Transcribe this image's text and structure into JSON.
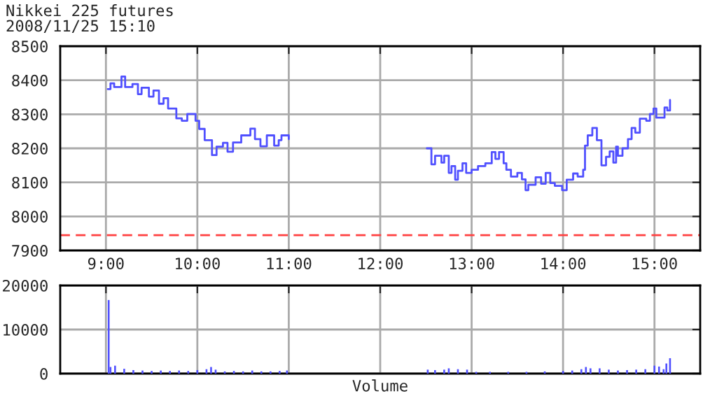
{
  "chart_data": [
    {
      "type": "step",
      "title": "Nikkei 225 futures",
      "subtitle": "2008/11/25 15:10",
      "series": [
        {
          "color": "#5050ff",
          "x": [
            9.02,
            9.05,
            9.09,
            9.17,
            9.21,
            9.29,
            9.35,
            9.39,
            9.47,
            9.52,
            9.58,
            9.63,
            9.68,
            9.77,
            9.83,
            9.89,
            9.98,
            10.02,
            10.08,
            10.16,
            10.21,
            10.28,
            10.33,
            10.39,
            10.48,
            10.58,
            10.63,
            10.69,
            10.76,
            10.84,
            10.89,
            10.92,
            10.96,
            11.0
          ],
          "values": [
            8374,
            8391,
            8380,
            8411,
            8380,
            8389,
            8359,
            8378,
            8352,
            8370,
            8331,
            8347,
            8317,
            8288,
            8281,
            8301,
            8281,
            8257,
            8224,
            8180,
            8205,
            8216,
            8190,
            8217,
            8238,
            8258,
            8227,
            8206,
            8238,
            8208,
            8224,
            8238,
            8238,
            8227
          ]
        },
        {
          "color": "#5050ff",
          "x": [
            12.51,
            12.56,
            12.6,
            12.67,
            12.7,
            12.75,
            12.78,
            12.82,
            12.85,
            12.9,
            12.94,
            13.0,
            13.07,
            13.15,
            13.22,
            13.26,
            13.3,
            13.35,
            13.38,
            13.43,
            13.5,
            13.55,
            13.59,
            13.62,
            13.7,
            13.76,
            13.81,
            13.86,
            13.91,
            13.99,
            14.04,
            14.11,
            14.16,
            14.22,
            14.24,
            14.27,
            14.32,
            14.37,
            14.42,
            14.47,
            14.51,
            14.55,
            14.58,
            14.6,
            14.65,
            14.71,
            14.75,
            14.79,
            14.84,
            14.91,
            14.95,
            14.99,
            15.02,
            15.09,
            15.11,
            15.14,
            15.17
          ],
          "values": [
            8200,
            8153,
            8178,
            8158,
            8178,
            8128,
            8148,
            8108,
            8134,
            8156,
            8128,
            8137,
            8148,
            8156,
            8189,
            8169,
            8189,
            8156,
            8137,
            8117,
            8128,
            8109,
            8077,
            8093,
            8115,
            8096,
            8128,
            8098,
            8090,
            8077,
            8108,
            8126,
            8117,
            8137,
            8208,
            8238,
            8260,
            8224,
            8150,
            8175,
            8191,
            8158,
            8205,
            8178,
            8200,
            8227,
            8260,
            8246,
            8287,
            8281,
            8301,
            8317,
            8290,
            8290,
            8320,
            8311,
            8342
          ]
        }
      ],
      "xlim": [
        8.5,
        15.5
      ],
      "xticks": [
        {
          "value": 9,
          "label": "9:00"
        },
        {
          "value": 10,
          "label": "10:00"
        },
        {
          "value": 11,
          "label": "11:00"
        },
        {
          "value": 12,
          "label": "12:00"
        },
        {
          "value": 13,
          "label": "13:00"
        },
        {
          "value": 14,
          "label": "14:00"
        },
        {
          "value": 15,
          "label": "15:00"
        }
      ],
      "ylim": [
        7900,
        8500
      ],
      "yticks": [
        7900,
        8000,
        8100,
        8200,
        8300,
        8400,
        8500
      ],
      "grid": true,
      "ref_lines": [
        {
          "axis": "y",
          "value": 7945,
          "color": "#ff4040",
          "line_style": "dashed"
        }
      ]
    },
    {
      "type": "bar",
      "xlabel": "Volume",
      "x": [
        9.03,
        9.05,
        9.1,
        9.2,
        9.3,
        9.4,
        9.5,
        9.6,
        9.7,
        9.8,
        9.9,
        10.0,
        10.1,
        10.15,
        10.2,
        10.3,
        10.4,
        10.5,
        10.6,
        10.7,
        10.8,
        10.9,
        10.98,
        12.52,
        12.6,
        12.7,
        12.75,
        12.85,
        12.95,
        13.05,
        13.2,
        13.4,
        13.6,
        13.8,
        14.0,
        14.1,
        14.2,
        14.25,
        14.3,
        14.4,
        14.5,
        14.6,
        14.7,
        14.8,
        14.9,
        15.0,
        15.05,
        15.1,
        15.13,
        15.17
      ],
      "series": [
        {
          "color": "#5050ff",
          "values": [
            16700,
            1500,
            1800,
            1100,
            800,
            700,
            600,
            700,
            600,
            700,
            600,
            800,
            1000,
            1500,
            900,
            500,
            600,
            500,
            700,
            500,
            500,
            600,
            700,
            900,
            800,
            900,
            1200,
            1000,
            900,
            400,
            400,
            400,
            400,
            500,
            600,
            700,
            1000,
            1500,
            1200,
            1200,
            900,
            700,
            800,
            900,
            1000,
            1800,
            1600,
            1000,
            2300,
            3500
          ]
        }
      ],
      "xlim": [
        8.5,
        15.5
      ],
      "xticks": [
        {
          "value": 9,
          "label": null
        },
        {
          "value": 10,
          "label": null
        },
        {
          "value": 11,
          "label": null
        },
        {
          "value": 12,
          "label": null
        },
        {
          "value": 13,
          "label": null
        },
        {
          "value": 14,
          "label": null
        },
        {
          "value": 15,
          "label": null
        }
      ],
      "ylim": [
        0,
        20000
      ],
      "yticks": [
        0,
        10000,
        20000
      ],
      "grid": true,
      "tick_labels": "y"
    }
  ]
}
